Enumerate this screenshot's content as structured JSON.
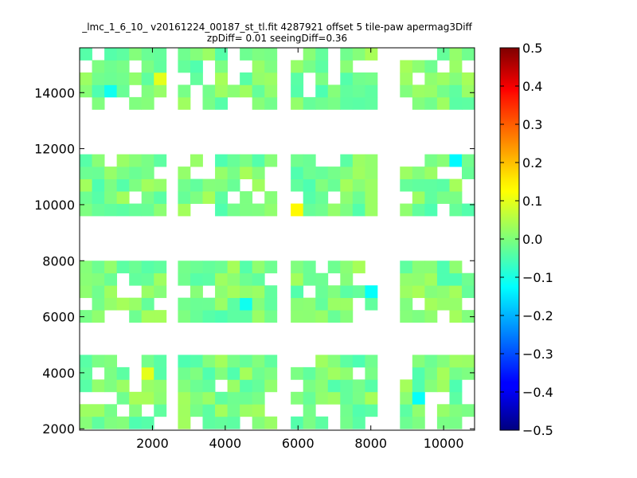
{
  "chart_data": {
    "type": "heatmap",
    "title_line1": "_lmc_1_6_10_ v20161224_00187_st_tl.fit 4287921 offset 5 tile-paw apermag3Diff",
    "title_line2": "zpDiff= 0.01 seeingDiff=0.36",
    "xlim": [
      0,
      10850
    ],
    "ylim": [
      1950,
      15600
    ],
    "x_ticks": [
      2000,
      4000,
      6000,
      8000,
      10000
    ],
    "x_tick_labels": [
      "2000",
      "4000",
      "6000",
      "8000",
      "10000"
    ],
    "y_ticks": [
      2000,
      4000,
      6000,
      8000,
      10000,
      12000,
      14000
    ],
    "y_tick_labels": [
      "2000",
      "4000",
      "6000",
      "8000",
      "10000",
      "12000",
      "14000"
    ],
    "colorbar": {
      "colormap": "jet",
      "vmin": -0.5,
      "vmax": 0.5,
      "ticks": [
        0.5,
        0.4,
        0.3,
        0.2,
        0.1,
        0.0,
        -0.1,
        -0.2,
        -0.3,
        -0.4,
        -0.5
      ],
      "tick_labels": [
        "0.5",
        "0.4",
        "0.3",
        "0.2",
        "0.1",
        "0.0",
        "−0.1",
        "−0.2",
        "−0.3",
        "−0.4",
        "−0.5"
      ]
    },
    "cell_width": 340,
    "cell_height": 440,
    "x_bins_start": 0,
    "y_bins_start": 2000,
    "detector_blocks": [
      {
        "x": [
          0,
          2300
        ],
        "y": [
          2000,
          4400
        ]
      },
      {
        "x": [
          2700,
          5100
        ],
        "y": [
          2000,
          4400
        ]
      },
      {
        "x": [
          5800,
          8100
        ],
        "y": [
          2000,
          4400
        ]
      },
      {
        "x": [
          8800,
          10850
        ],
        "y": [
          2000,
          4400
        ]
      },
      {
        "x": [
          0,
          2300
        ],
        "y": [
          5800,
          8000
        ]
      },
      {
        "x": [
          2700,
          5100
        ],
        "y": [
          5800,
          8000
        ]
      },
      {
        "x": [
          5800,
          8100
        ],
        "y": [
          5800,
          8000
        ]
      },
      {
        "x": [
          8800,
          10850
        ],
        "y": [
          5800,
          8000
        ]
      },
      {
        "x": [
          0,
          2300
        ],
        "y": [
          9600,
          11800
        ]
      },
      {
        "x": [
          2700,
          5100
        ],
        "y": [
          9600,
          11800
        ]
      },
      {
        "x": [
          5800,
          8100
        ],
        "y": [
          9600,
          11800
        ]
      },
      {
        "x": [
          8800,
          10850
        ],
        "y": [
          9600,
          11800
        ]
      },
      {
        "x": [
          0,
          2300
        ],
        "y": [
          13400,
          15600
        ]
      },
      {
        "x": [
          2700,
          5100
        ],
        "y": [
          13400,
          15600
        ]
      },
      {
        "x": [
          5800,
          8100
        ],
        "y": [
          13400,
          15600
        ]
      },
      {
        "x": [
          8800,
          10850
        ],
        "y": [
          13400,
          15600
        ]
      }
    ],
    "notable_cells": [
      {
        "x": 1900,
        "y": 3900,
        "value": 0.1
      },
      {
        "x": 2200,
        "y": 14700,
        "value": 0.1
      },
      {
        "x": 5950,
        "y": 9900,
        "value": 0.13
      },
      {
        "x": 7950,
        "y": 6950,
        "value": -0.12
      },
      {
        "x": 9200,
        "y": 3200,
        "value": -0.12
      },
      {
        "x": 10300,
        "y": 11400,
        "value": -0.13
      },
      {
        "x": 850,
        "y": 13950,
        "value": -0.11
      },
      {
        "x": 4600,
        "y": 6300,
        "value": -0.11
      },
      {
        "x": 7950,
        "y": 2400,
        "value": -0.08
      }
    ]
  }
}
